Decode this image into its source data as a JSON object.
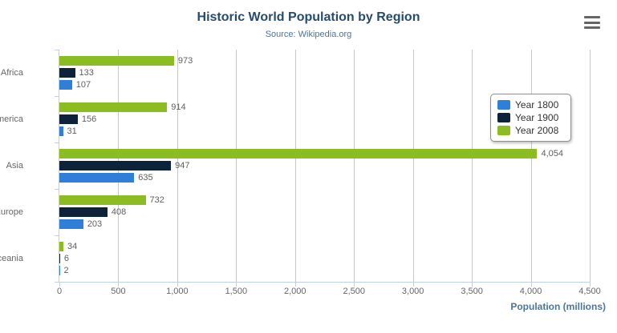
{
  "header": {
    "title": "Historic World Population by Region",
    "subtitle": "Source: Wikipedia.org",
    "menu_icon": "hamburger-icon"
  },
  "colors": {
    "title": "#274b6d",
    "subtitle": "#4d759e",
    "axis_label": "#666666",
    "data_label": "#606060",
    "gridline": "#c9c9c9",
    "axis_line": "#c0d0e0",
    "legend_border": "#909090"
  },
  "chart_data": {
    "type": "bar",
    "orientation": "horizontal",
    "title": "Historic World Population by Region",
    "subtitle": "Source: Wikipedia.org",
    "categories": [
      "Africa",
      "America",
      "Asia",
      "Europe",
      "Oceania"
    ],
    "series": [
      {
        "name": "Year 1800",
        "color": "#2f7ed8",
        "values": [
          107,
          31,
          635,
          203,
          2
        ]
      },
      {
        "name": "Year 1900",
        "color": "#0d233a",
        "values": [
          133,
          156,
          947,
          408,
          6
        ]
      },
      {
        "name": "Year 2008",
        "color": "#8bbc21",
        "values": [
          973,
          914,
          4054,
          732,
          34
        ]
      }
    ],
    "xlabel": "Population (millions)",
    "ylabel": "",
    "xlim": [
      0,
      4500
    ],
    "x_ticks": [
      0,
      500,
      1000,
      1500,
      2000,
      2500,
      3000,
      3500,
      4000,
      4500
    ],
    "grid": true,
    "data_labels": true,
    "legend_position": "right",
    "series_display_order": "reversed-top-to-bottom"
  }
}
